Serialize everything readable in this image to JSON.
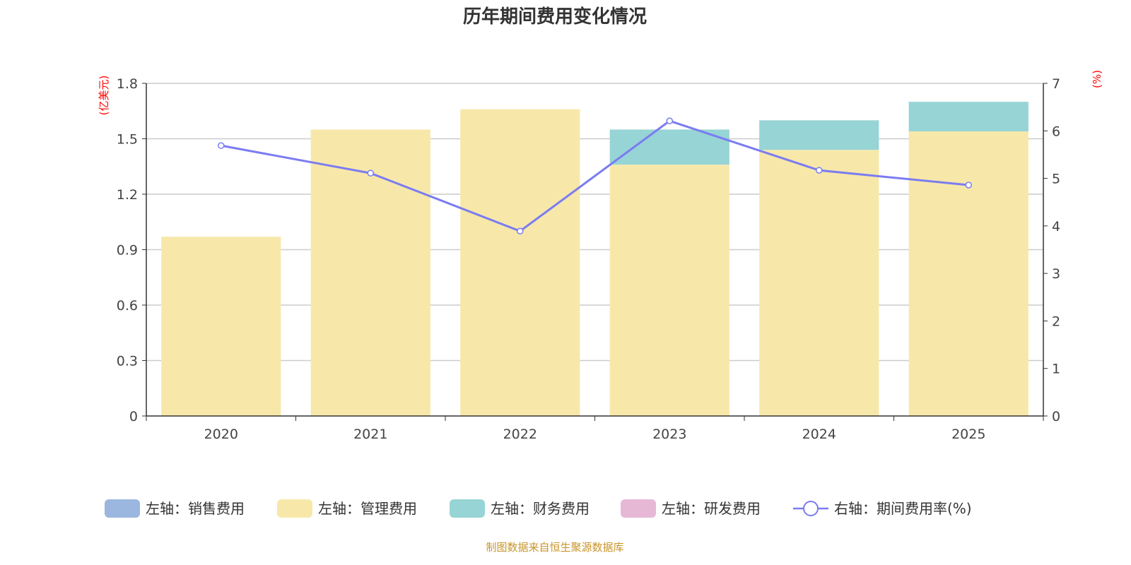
{
  "chart_data": {
    "type": "bar",
    "title": "历年期间费用变化情况",
    "categories": [
      "2020",
      "2021",
      "2022",
      "2023",
      "2024",
      "2025"
    ],
    "left_axis": {
      "unit": "(亿美元)",
      "ylim": [
        0,
        1.8
      ],
      "ticks": [
        "0",
        "0.3",
        "0.6",
        "0.9",
        "1.2",
        "1.5",
        "1.8"
      ]
    },
    "right_axis": {
      "unit": "(%)",
      "ylim": [
        0,
        7
      ],
      "ticks": [
        "0",
        "1",
        "2",
        "3",
        "4",
        "5",
        "6",
        "7"
      ]
    },
    "series": [
      {
        "name": "左轴：销售费用",
        "type": "bar",
        "stack": true,
        "color": "#9bb7e0",
        "values": [
          0,
          0,
          0,
          0,
          0,
          0
        ]
      },
      {
        "name": "左轴：管理费用",
        "type": "bar",
        "stack": true,
        "color": "#f7e8aa",
        "values": [
          0.97,
          1.55,
          1.66,
          1.36,
          1.44,
          1.54
        ]
      },
      {
        "name": "左轴：财务费用",
        "type": "bar",
        "stack": true,
        "color": "#97d4d5",
        "values": [
          0,
          0,
          0,
          0.19,
          0.16,
          0.16
        ]
      },
      {
        "name": "左轴：研发费用",
        "type": "bar",
        "stack": true,
        "color": "#e6b8d6",
        "values": [
          0,
          0,
          0,
          0,
          0,
          0
        ]
      },
      {
        "name": "右轴：期间费用率(%)",
        "type": "line",
        "color": "#7b7cf0",
        "values": [
          5.69,
          5.11,
          3.89,
          6.21,
          5.17,
          4.86
        ]
      }
    ],
    "grid": true,
    "legend_position": "bottom",
    "source": "制图数据来自恒生聚源数据库"
  }
}
